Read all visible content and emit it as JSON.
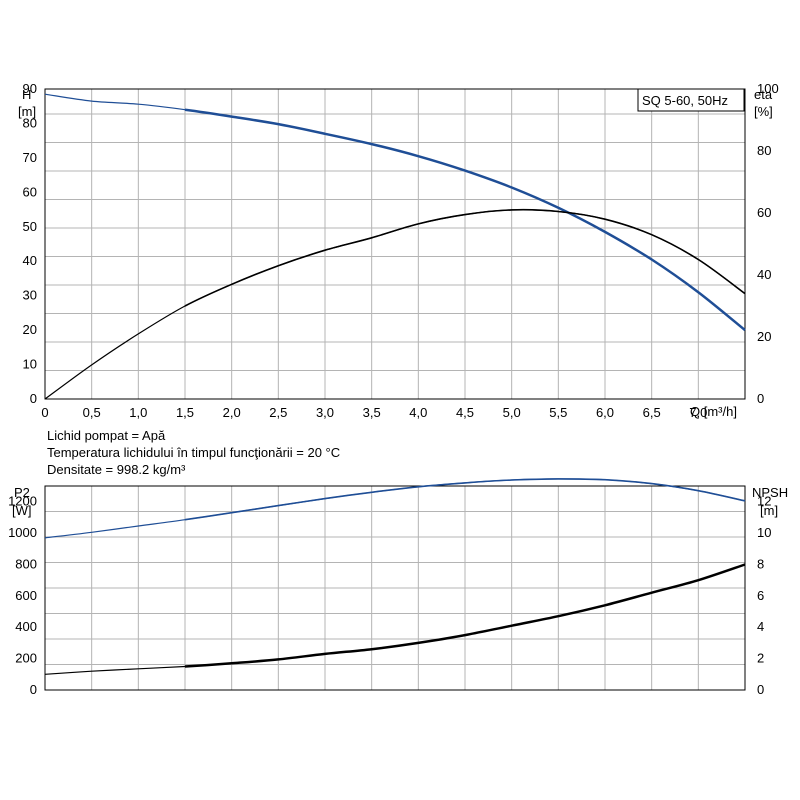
{
  "chart_data": [
    {
      "type": "line",
      "legend_box": "SQ 5-60, 50Hz",
      "x_axis": {
        "label": "Q [m³/h]",
        "ticks": [
          "0",
          "0,5",
          "1,0",
          "1,5",
          "2,0",
          "2,5",
          "3,0",
          "3,5",
          "4,0",
          "4,5",
          "5,0",
          "5,5",
          "6,0",
          "6,5",
          "7,0"
        ],
        "range": [
          0,
          7.5
        ]
      },
      "left_axis": {
        "title": "H",
        "unit": "[m]",
        "ticks": [
          "0",
          "10",
          "20",
          "30",
          "40",
          "50",
          "60",
          "70",
          "80",
          "90"
        ],
        "range": [
          0,
          90
        ]
      },
      "right_axis": {
        "title": "eta",
        "unit": "[%]",
        "ticks": [
          "0",
          "20",
          "40",
          "60",
          "80",
          "100"
        ],
        "range": [
          0,
          100
        ]
      },
      "grid": true,
      "series": [
        {
          "axis": "left",
          "color": "#1f4e96",
          "x": [
            0,
            0.5,
            1.0,
            1.5,
            2.0,
            2.5,
            3.0,
            3.5,
            4.0,
            4.5,
            5.0,
            5.5,
            6.0,
            6.5,
            7.0,
            7.5
          ],
          "y": [
            88.5,
            86.5,
            85.6,
            84,
            82,
            79.8,
            77,
            74,
            70.5,
            66.3,
            61.4,
            55.5,
            48.5,
            40.5,
            31,
            20
          ]
        },
        {
          "axis": "right",
          "color": "#000000",
          "x": [
            0,
            0.5,
            1.0,
            1.5,
            2.0,
            2.5,
            3.0,
            3.5,
            4.0,
            4.5,
            5.0,
            5.5,
            6.0,
            6.5,
            7.0,
            7.5
          ],
          "y": [
            0,
            11,
            21,
            30,
            37,
            43,
            48,
            52,
            56.5,
            59.5,
            61,
            60.5,
            58,
            53,
            45,
            34
          ]
        }
      ],
      "notes": [
        "Lichid pompat = Apă",
        "Temperatura lichidului în timpul funcţionării = 20 °C",
        "Densitate = 998.2 kg/m³"
      ]
    },
    {
      "type": "line",
      "x_axis": {
        "range": [
          0,
          7.5
        ]
      },
      "left_axis": {
        "title": "P2",
        "unit": "[W]",
        "ticks": [
          "0",
          "200",
          "400",
          "600",
          "800",
          "1000",
          "1200"
        ],
        "range": [
          0,
          1300
        ]
      },
      "right_axis": {
        "title": "NPSH",
        "unit": "[m]",
        "ticks": [
          "0",
          "2",
          "4",
          "6",
          "8",
          "10",
          "12"
        ],
        "range": [
          0,
          13
        ]
      },
      "grid": true,
      "series": [
        {
          "axis": "left",
          "color": "#1f4e96",
          "x": [
            0,
            0.5,
            1.0,
            1.5,
            2.0,
            2.5,
            3.0,
            3.5,
            4.0,
            4.5,
            5.0,
            5.5,
            6.0,
            6.5,
            7.0,
            7.5
          ],
          "y": [
            970,
            1005,
            1045,
            1085,
            1130,
            1175,
            1220,
            1260,
            1295,
            1320,
            1338,
            1345,
            1340,
            1315,
            1270,
            1205
          ]
        },
        {
          "axis": "right",
          "color": "#000000",
          "x": [
            0,
            0.5,
            1.0,
            1.5,
            2.0,
            2.5,
            3.0,
            3.5,
            4.0,
            4.5,
            5.0,
            5.5,
            6.0,
            6.5,
            7.0,
            7.5
          ],
          "y": [
            1.0,
            1.2,
            1.35,
            1.5,
            1.7,
            1.95,
            2.3,
            2.6,
            3.0,
            3.5,
            4.1,
            4.7,
            5.4,
            6.2,
            7.0,
            8.0
          ]
        }
      ]
    }
  ]
}
